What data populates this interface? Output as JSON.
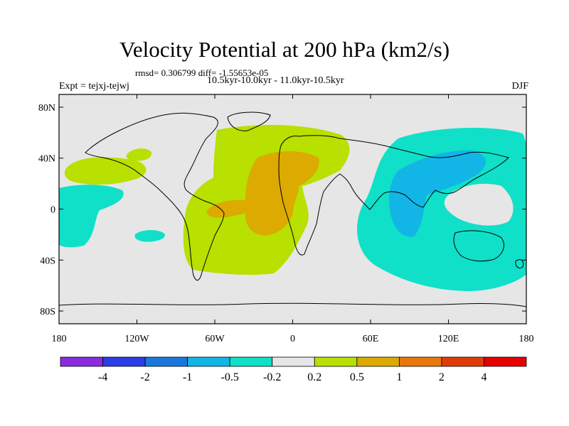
{
  "title": "Velocity Potential at 200 hPa (km2/s)",
  "stats_line": "rmsd= 0.306799 diff= -1.55653e-05",
  "periods_line": "10.5kyr-10.0kyr - 11.0kyr-10.5kyr",
  "expt_label": "Expt = tejxj-tejwj",
  "season_label": "DJF",
  "colors": {
    "background_land_ocean": "#e6e6e6",
    "coast": "#000000",
    "levels": [
      "#8a2be2",
      "#2a3de6",
      "#1a78dc",
      "#11b6e6",
      "#10e0c8",
      "#e6e6e6",
      "#b8e000",
      "#dcaa00",
      "#e8780a",
      "#e03c0a",
      "#e60000"
    ]
  },
  "map": {
    "projection": "cylindrical-equidistant",
    "lat_ticks": [
      {
        "value": 80,
        "label": "80N"
      },
      {
        "value": 40,
        "label": "40N"
      },
      {
        "value": 0,
        "label": "0"
      },
      {
        "value": -40,
        "label": "40S"
      },
      {
        "value": -80,
        "label": "80S"
      }
    ],
    "lon_ticks": [
      {
        "value": -180,
        "label": "180"
      },
      {
        "value": -120,
        "label": "120W"
      },
      {
        "value": -60,
        "label": "60W"
      },
      {
        "value": 0,
        "label": "0"
      },
      {
        "value": 60,
        "label": "60E"
      },
      {
        "value": 120,
        "label": "120E"
      },
      {
        "value": 180,
        "label": "180"
      }
    ],
    "lon_range": [
      -180,
      180
    ],
    "lat_range": [
      -90,
      90
    ]
  },
  "colorbar": {
    "levels": [
      "-4",
      "-2",
      "-1",
      "-0.5",
      "-0.2",
      "0.2",
      "0.5",
      "1",
      "2",
      "4"
    ]
  },
  "chart_data": {
    "type": "heatmap",
    "title": "Velocity Potential at 200 hPa (km2/s)",
    "units": "km2/s",
    "contour_levels": [
      -4,
      -2,
      -1,
      -0.5,
      -0.2,
      0.2,
      0.5,
      1,
      2,
      4
    ],
    "regions": [
      {
        "name": "atlantic-positive",
        "range": "0.2 to 0.5",
        "lon_extent": [
          -82,
          48
        ],
        "lat_extent": [
          -50,
          62
        ]
      },
      {
        "name": "atlantic-core",
        "range": "0.5 to 1",
        "lon_extent": [
          -68,
          15
        ],
        "lat_extent": [
          -15,
          48
        ]
      },
      {
        "name": "pacific-negative",
        "range": "-0.5 to -0.2",
        "lon_extent": [
          48,
          178
        ],
        "lat_extent": [
          -65,
          65
        ]
      },
      {
        "name": "pacific-core",
        "range": "-1 to -0.5",
        "lon_extent": [
          80,
          148
        ],
        "lat_extent": [
          -18,
          45
        ]
      },
      {
        "name": "west-pacific-positive",
        "range": "0.2 to 0.5",
        "lon_extent": [
          -178,
          -118
        ],
        "lat_extent": [
          23,
          38
        ]
      },
      {
        "name": "west-pacific-negative",
        "range": "-0.5 to -0.2",
        "lon_extent": [
          -180,
          -130
        ],
        "lat_extent": [
          -25,
          10
        ]
      }
    ]
  }
}
